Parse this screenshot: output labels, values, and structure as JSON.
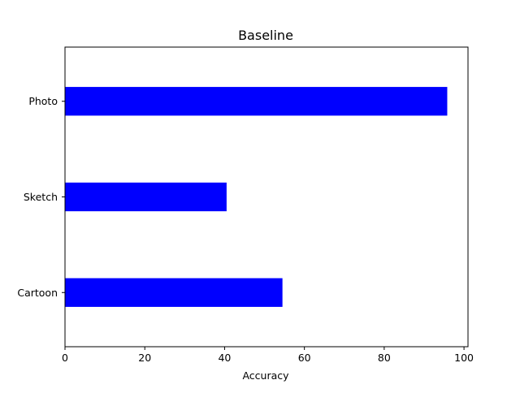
{
  "chart_data": {
    "type": "bar",
    "orientation": "horizontal",
    "title": "Baseline",
    "xlabel": "Accuracy",
    "ylabel": "",
    "categories": [
      "Cartoon",
      "Sketch",
      "Photo"
    ],
    "values": [
      54.5,
      40.5,
      95.8
    ],
    "xlim": [
      0,
      101
    ],
    "xticks": [
      0,
      20,
      40,
      60,
      80,
      100
    ],
    "bar_color": "#0000ff",
    "grid": false,
    "legend": "none"
  }
}
